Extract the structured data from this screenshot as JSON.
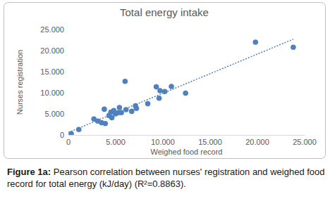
{
  "chart_data": {
    "type": "scatter",
    "title": "Total energy intake",
    "x_label": "Weighed food record",
    "y_label": "Nurses registration",
    "caption": [
      "Figure 1a:",
      "Pearson correlation between nurses' registration and weighed food record for total energy (kJ/day) (R²=0.8863)."
    ],
    "xlim": [
      0,
      25000
    ],
    "ylim": [
      0,
      25000
    ],
    "xticks": [
      0,
      {
        "value": 5000,
        "label": "5.000"
      },
      {
        "value": 10000,
        "label": "10.000"
      },
      {
        "value": 15000,
        "label": "15.000"
      },
      {
        "value": 20000,
        "label": "20.000"
      },
      {
        "value": 25000,
        "label": "25.000"
      }
    ],
    "yticks": [
      0,
      {
        "value": 5000,
        "label": "5.000"
      },
      {
        "value": 10000,
        "label": "10.000"
      },
      {
        "value": 15000,
        "label": "15.000"
      },
      {
        "value": 20000,
        "label": "20.000"
      },
      {
        "value": 25000,
        "label": "25.000"
      }
    ],
    "grid": false,
    "series": [
      {
        "type": "scatter",
        "marker": "circle",
        "color": "#4f81bd",
        "x": [
          300,
          1100,
          2700,
          3100,
          3500,
          3900,
          3800,
          4300,
          4500,
          4600,
          4800,
          5000,
          5300,
          5400,
          5600,
          6000,
          6100,
          6700,
          7100,
          7200,
          8400,
          9300,
          9600,
          9700,
          10200,
          10900,
          12400,
          19800,
          23800
        ],
        "values": [
          300,
          1300,
          3800,
          3300,
          2900,
          2700,
          6100,
          4600,
          5400,
          4100,
          5800,
          5000,
          5300,
          6500,
          5300,
          12700,
          6000,
          5600,
          6900,
          6300,
          7400,
          11400,
          8700,
          10500,
          10300,
          11500,
          9900,
          22000,
          20800
        ]
      },
      {
        "type": "line",
        "line_style": "dotted",
        "color": "#4f81bd",
        "x": [
          0,
          23800
        ],
        "values": [
          600,
          22700
        ]
      }
    ]
  }
}
